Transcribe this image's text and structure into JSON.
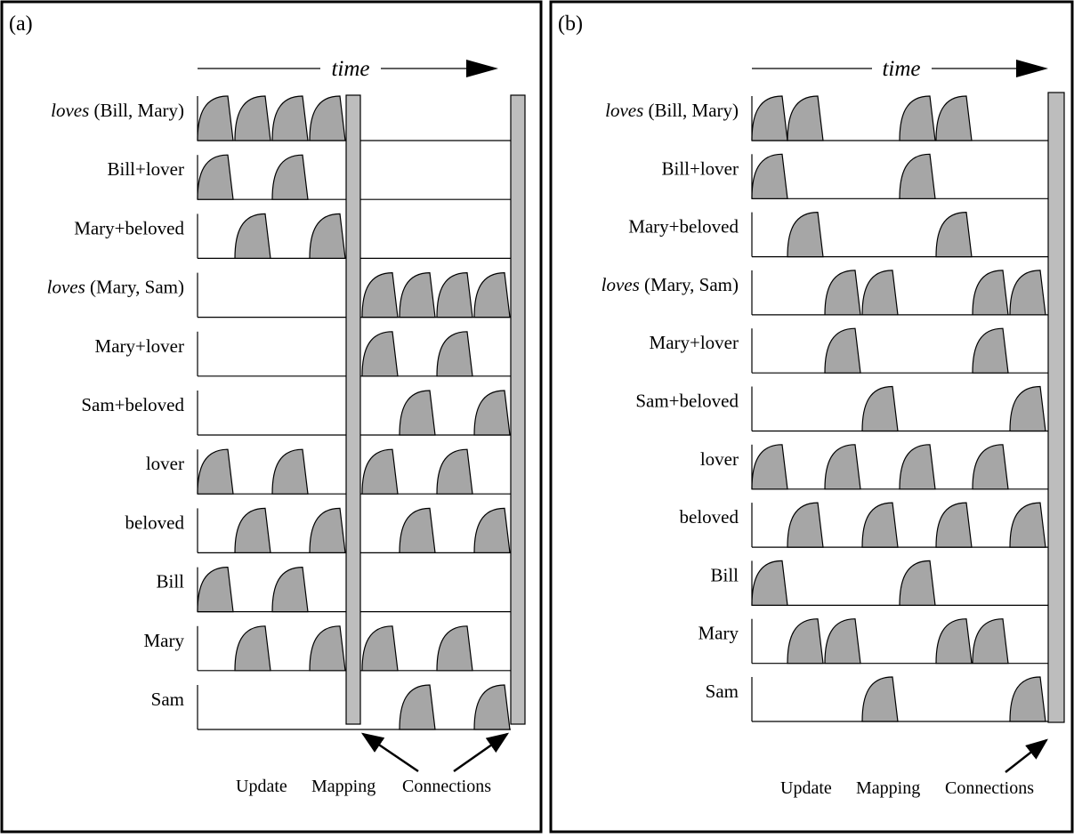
{
  "panels": [
    {
      "tag": "(a)",
      "time_label": "time",
      "rows": [
        {
          "pred": "loves",
          "args": "(Bill,  Mary)",
          "label": "",
          "spikes": [
            0,
            1,
            2,
            3
          ]
        },
        {
          "pred": "",
          "args": "",
          "label": "Bill+lover",
          "spikes": [
            0,
            2
          ]
        },
        {
          "pred": "",
          "args": "",
          "label": "Mary+beloved",
          "spikes": [
            1,
            3
          ]
        },
        {
          "pred": "loves",
          "args": "(Mary,  Sam)",
          "label": "",
          "spikes": [
            4,
            5,
            6,
            7
          ]
        },
        {
          "pred": "",
          "args": "",
          "label": "Mary+lover",
          "spikes": [
            4,
            6
          ]
        },
        {
          "pred": "",
          "args": "",
          "label": "Sam+beloved",
          "spikes": [
            5,
            7
          ]
        },
        {
          "pred": "",
          "args": "",
          "label": "lover",
          "spikes": [
            0,
            2,
            4,
            6
          ]
        },
        {
          "pred": "",
          "args": "",
          "label": "beloved",
          "spikes": [
            1,
            3,
            5,
            7
          ]
        },
        {
          "pred": "",
          "args": "",
          "label": "Bill",
          "spikes": [
            0,
            2
          ]
        },
        {
          "pred": "",
          "args": "",
          "label": "Mary",
          "spikes": [
            1,
            3,
            4,
            6
          ]
        },
        {
          "pred": "",
          "args": "",
          "label": "Sam",
          "spikes": [
            5,
            7
          ]
        }
      ],
      "caption": {
        "update": "Update",
        "mapping": "Mapping",
        "connections": "Connections"
      }
    },
    {
      "tag": "(b)",
      "time_label": "time",
      "rows": [
        {
          "pred": "loves",
          "args": "(Bill,  Mary)",
          "label": "",
          "spikes": [
            0,
            1,
            4,
            5
          ]
        },
        {
          "pred": "",
          "args": "",
          "label": "Bill+lover",
          "spikes": [
            0,
            4
          ]
        },
        {
          "pred": "",
          "args": "",
          "label": "Mary+beloved",
          "spikes": [
            1,
            5
          ]
        },
        {
          "pred": "loves",
          "args": "(Mary,  Sam)",
          "label": "",
          "spikes": [
            2,
            3,
            6,
            7
          ]
        },
        {
          "pred": "",
          "args": "",
          "label": "Mary+lover",
          "spikes": [
            2,
            6
          ]
        },
        {
          "pred": "",
          "args": "",
          "label": "Sam+beloved",
          "spikes": [
            3,
            7
          ]
        },
        {
          "pred": "",
          "args": "",
          "label": "lover",
          "spikes": [
            0,
            2,
            4,
            6
          ]
        },
        {
          "pred": "",
          "args": "",
          "label": "beloved",
          "spikes": [
            1,
            3,
            5,
            7
          ]
        },
        {
          "pred": "",
          "args": "",
          "label": "Bill",
          "spikes": [
            0,
            4
          ]
        },
        {
          "pred": "",
          "args": "",
          "label": "Mary",
          "spikes": [
            1,
            2,
            5,
            6
          ]
        },
        {
          "pred": "",
          "args": "",
          "label": "Sam",
          "spikes": [
            3,
            7
          ]
        }
      ],
      "caption": {
        "update": "Update",
        "mapping": "Mapping",
        "connections": "Connections"
      }
    }
  ],
  "colors": {
    "spike_fill": "#a6a6a6",
    "bar_fill": "#bdbdbd",
    "ink": "#000000"
  }
}
